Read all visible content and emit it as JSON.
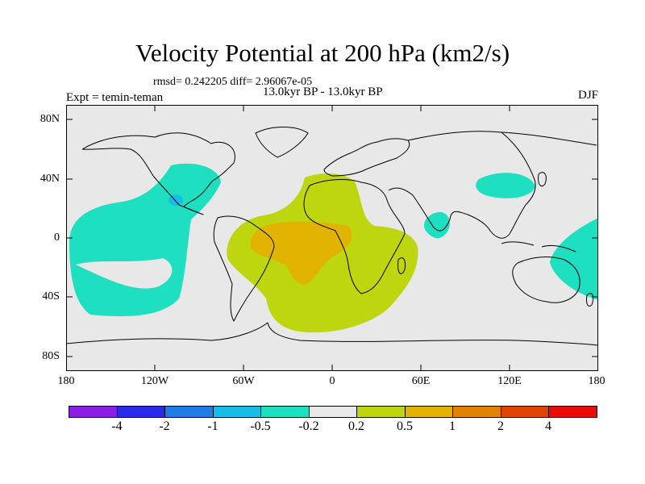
{
  "title": "Velocity Potential at 200 hPa (km2/s)",
  "stats": "rmsd= 0.242205 diff= 2.96067e-05",
  "period": "13.0kyr BP - 13.0kyr BP",
  "experiment": "Expt = temin-teman",
  "season": "DJF",
  "axes": {
    "y_ticks": [
      "80N",
      "40N",
      "0",
      "40S",
      "80S"
    ],
    "x_ticks": [
      "180",
      "120W",
      "60W",
      "0",
      "60E",
      "120E",
      "180"
    ]
  },
  "colorbar": {
    "colors": [
      "#8a1fe6",
      "#2a2ae8",
      "#1f7ce6",
      "#16bde6",
      "#1ee0c0",
      "#e8e8e8",
      "#bdd60f",
      "#e0b400",
      "#e08400",
      "#e04400",
      "#e60c0c"
    ],
    "labels": [
      "-4",
      "-2",
      "-1",
      "-0.5",
      "-0.2",
      "0.2",
      "0.5",
      "1",
      "2",
      "4"
    ]
  },
  "map_colors": {
    "background": "#e8e8e8",
    "negative_weak": "#1ee0c0",
    "negative_mid": "#16bde6",
    "positive_weak": "#bdd60f",
    "positive_mid": "#e0b400"
  }
}
